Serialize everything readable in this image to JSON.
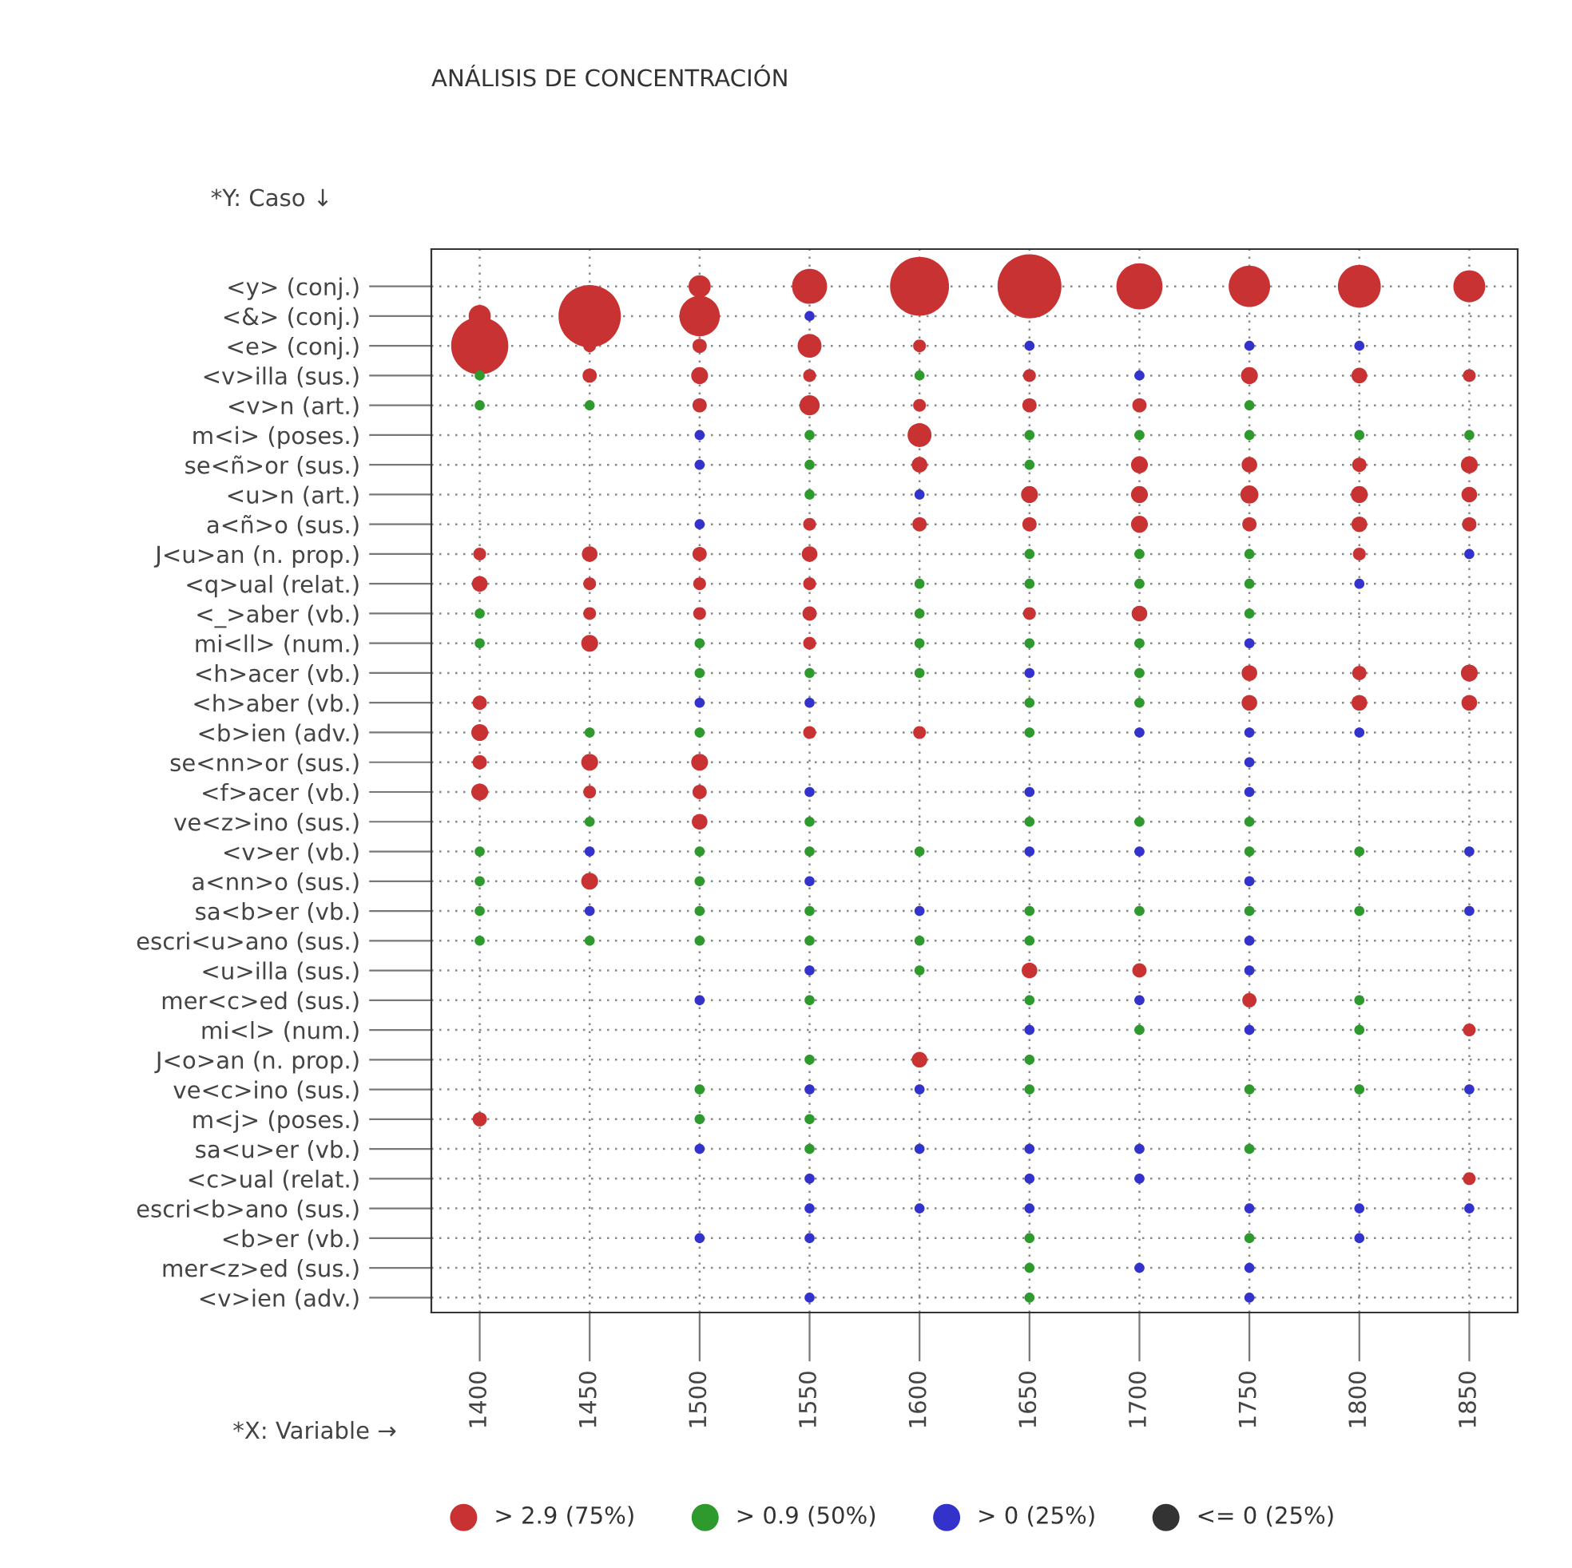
{
  "chart_data": {
    "type": "bubble",
    "orientation": "horizontal",
    "title": "ANÁLISIS DE CONCENTRACIÓN",
    "xlabel": "*X: Variable →",
    "annotations": [
      "*Y: Caso ↓"
    ],
    "categories": [
      "<y> (conj.)",
      "<&> (conj.)",
      "<e> (conj.)",
      "<v>illa (sus.)",
      "<v>n (art.)",
      "m<i> (poses.)",
      "se<ñ>or (sus.)",
      "<u>n (art.)",
      "a<ñ>o (sus.)",
      "J<u>an (n. prop.)",
      "<q>ual (relat.)",
      "<_>aber (vb.)",
      "mi<ll> (num.)",
      "<h>acer (vb.)",
      "<h>aber (vb.)",
      "<b>ien (adv.)",
      "se<nn>or (sus.)",
      "<f>acer (vb.)",
      "ve<z>ino (sus.)",
      "<v>er (vb.)",
      "a<nn>o (sus.)",
      "sa<b>er (vb.)",
      "escri<u>ano (sus.)",
      "<u>illa (sus.)",
      "mer<c>ed (sus.)",
      "mi<l> (num.)",
      "J<o>an (n. prop.)",
      "ve<c>ino (sus.)",
      "m<j> (poses.)",
      "sa<u>er (vb.)",
      "<c>ual (relat.)",
      "escri<b>ano (sus.)",
      "<b>er (vb.)",
      "mer<z>ed (sus.)",
      "<v>ien (adv.)"
    ],
    "xlim": [
      1378,
      1872
    ],
    "xticks": [
      1400,
      1450,
      1500,
      1550,
      1600,
      1650,
      1700,
      1750,
      1800,
      1850
    ],
    "grid": true,
    "legend": "bottom",
    "marker": "circle",
    "series": [
      {
        "values": [
          null,
          1400,
          1400,
          1400,
          1400,
          null,
          null,
          null,
          null,
          1400,
          1400,
          1400,
          1400,
          null,
          1400,
          1400,
          1400,
          1400,
          null,
          1400,
          1400,
          1400,
          1400,
          null,
          null,
          null,
          null,
          null,
          1400,
          null,
          null,
          null,
          null,
          null,
          null
        ],
        "sizes": [
          null,
          0.12,
          0.8,
          0.025,
          0.025,
          null,
          null,
          null,
          null,
          0.04,
          0.06,
          0.025,
          0.025,
          null,
          0.05,
          0.07,
          0.05,
          0.07,
          null,
          0.025,
          0.025,
          0.025,
          0.025,
          null,
          null,
          null,
          null,
          null,
          0.05,
          null,
          null,
          null,
          null,
          null,
          null
        ],
        "colors": [
          null,
          "#c83232",
          "#c83232",
          "#2e9a2e",
          "#2e9a2e",
          null,
          null,
          null,
          null,
          "#c83232",
          "#c83232",
          "#2e9a2e",
          "#2e9a2e",
          null,
          "#c83232",
          "#c83232",
          "#c83232",
          "#c83232",
          null,
          "#2e9a2e",
          "#2e9a2e",
          "#2e9a2e",
          "#2e9a2e",
          null,
          null,
          null,
          null,
          null,
          "#c83232",
          null,
          null,
          null,
          null,
          null,
          null
        ]
      },
      {
        "values": [
          null,
          1450,
          1450,
          1450,
          1450,
          null,
          null,
          null,
          null,
          1450,
          1450,
          1450,
          1450,
          null,
          null,
          1450,
          1450,
          1450,
          1450,
          1450,
          1450,
          1450,
          1450,
          null,
          null,
          null,
          null,
          null,
          null,
          null,
          null,
          null,
          null,
          null,
          null
        ],
        "sizes": [
          null,
          0.95,
          0.04,
          0.05,
          0.025,
          null,
          null,
          null,
          null,
          0.06,
          0.04,
          0.04,
          0.07,
          null,
          null,
          0.025,
          0.07,
          0.04,
          0.025,
          0.025,
          0.07,
          0.025,
          0.025,
          null,
          null,
          null,
          null,
          null,
          null,
          null,
          null,
          null,
          null,
          null,
          null
        ],
        "colors": [
          null,
          "#c83232",
          "#c83232",
          "#c83232",
          "#2e9a2e",
          null,
          null,
          null,
          null,
          "#c83232",
          "#c83232",
          "#c83232",
          "#c83232",
          null,
          null,
          "#2e9a2e",
          "#c83232",
          "#c83232",
          "#2e9a2e",
          "#3333cc",
          "#c83232",
          "#3333cc",
          "#2e9a2e",
          null,
          null,
          null,
          null,
          null,
          null,
          null,
          null,
          null,
          null,
          null,
          null
        ]
      },
      {
        "values": [
          1500,
          1500,
          1500,
          1500,
          1500,
          1500,
          1500,
          null,
          1500,
          1500,
          1500,
          1500,
          1500,
          1500,
          1500,
          1500,
          1500,
          1500,
          1500,
          1500,
          1500,
          1500,
          1500,
          null,
          1500,
          null,
          null,
          1500,
          1500,
          1500,
          null,
          null,
          1500,
          null,
          null
        ],
        "sizes": [
          0.12,
          0.4,
          0.05,
          0.07,
          0.05,
          0.025,
          0.025,
          null,
          0.025,
          0.05,
          0.04,
          0.04,
          0.025,
          0.025,
          0.025,
          0.025,
          0.07,
          0.05,
          0.06,
          0.025,
          0.025,
          0.025,
          0.025,
          null,
          0.025,
          null,
          null,
          0.025,
          0.025,
          0.025,
          null,
          null,
          0.025,
          null,
          null
        ],
        "colors": [
          "#c83232",
          "#c83232",
          "#c83232",
          "#c83232",
          "#c83232",
          "#3333cc",
          "#3333cc",
          null,
          "#3333cc",
          "#c83232",
          "#c83232",
          "#c83232",
          "#2e9a2e",
          "#2e9a2e",
          "#3333cc",
          "#2e9a2e",
          "#c83232",
          "#c83232",
          "#c83232",
          "#2e9a2e",
          "#2e9a2e",
          "#2e9a2e",
          "#2e9a2e",
          null,
          "#3333cc",
          null,
          null,
          "#2e9a2e",
          "#2e9a2e",
          "#3333cc",
          null,
          null,
          "#3333cc",
          null,
          null
        ]
      },
      {
        "values": [
          1550,
          1550,
          1550,
          1550,
          1550,
          1550,
          1550,
          1550,
          1550,
          1550,
          1550,
          1550,
          1550,
          1550,
          1550,
          1550,
          null,
          1550,
          1550,
          1550,
          1550,
          1550,
          1550,
          1550,
          1550,
          null,
          1550,
          1550,
          1550,
          1550,
          1550,
          1550,
          1550,
          null,
          1550
        ],
        "sizes": [
          0.3,
          0.025,
          0.14,
          0.04,
          0.1,
          0.025,
          0.025,
          0.025,
          0.04,
          0.06,
          0.04,
          0.05,
          0.04,
          0.025,
          0.025,
          0.04,
          null,
          0.025,
          0.025,
          0.025,
          0.025,
          0.025,
          0.025,
          0.025,
          0.025,
          null,
          0.025,
          0.025,
          0.025,
          0.025,
          0.025,
          0.025,
          0.025,
          null,
          0.025
        ],
        "colors": [
          "#c83232",
          "#3333cc",
          "#c83232",
          "#c83232",
          "#c83232",
          "#2e9a2e",
          "#2e9a2e",
          "#2e9a2e",
          "#c83232",
          "#c83232",
          "#c83232",
          "#c83232",
          "#c83232",
          "#2e9a2e",
          "#3333cc",
          "#c83232",
          null,
          "#3333cc",
          "#2e9a2e",
          "#2e9a2e",
          "#3333cc",
          "#2e9a2e",
          "#2e9a2e",
          "#3333cc",
          "#2e9a2e",
          null,
          "#2e9a2e",
          "#3333cc",
          "#2e9a2e",
          "#2e9a2e",
          "#3333cc",
          "#3333cc",
          "#3333cc",
          null,
          "#3333cc"
        ]
      },
      {
        "values": [
          1600,
          null,
          1600,
          1600,
          1600,
          1600,
          1600,
          1600,
          1600,
          null,
          1600,
          1600,
          1600,
          1600,
          null,
          1600,
          null,
          null,
          null,
          1600,
          null,
          1600,
          1600,
          1600,
          null,
          null,
          1600,
          1600,
          null,
          1600,
          null,
          1600,
          null,
          null,
          null
        ],
        "sizes": [
          0.85,
          null,
          0.04,
          0.025,
          0.04,
          0.14,
          0.06,
          0.025,
          0.05,
          null,
          0.025,
          0.025,
          0.025,
          0.025,
          null,
          0.04,
          null,
          null,
          null,
          0.025,
          null,
          0.025,
          0.025,
          0.025,
          null,
          null,
          0.06,
          0.025,
          null,
          0.025,
          null,
          0.025,
          null,
          null,
          null
        ],
        "colors": [
          "#c83232",
          null,
          "#c83232",
          "#2e9a2e",
          "#c83232",
          "#c83232",
          "#c83232",
          "#3333cc",
          "#c83232",
          null,
          "#2e9a2e",
          "#2e9a2e",
          "#2e9a2e",
          "#2e9a2e",
          null,
          "#c83232",
          null,
          null,
          null,
          "#2e9a2e",
          null,
          "#3333cc",
          "#2e9a2e",
          "#2e9a2e",
          null,
          null,
          "#c83232",
          "#3333cc",
          null,
          "#3333cc",
          null,
          "#3333cc",
          null,
          null,
          null
        ]
      },
      {
        "values": [
          1650,
          null,
          1650,
          1650,
          1650,
          1650,
          1650,
          1650,
          1650,
          1650,
          1650,
          1650,
          1650,
          1650,
          1650,
          1650,
          null,
          1650,
          1650,
          1650,
          null,
          1650,
          1650,
          1650,
          1650,
          1650,
          1650,
          1650,
          null,
          1650,
          1650,
          1650,
          1650,
          1650,
          1650
        ],
        "sizes": [
          1,
          null,
          0.025,
          0.04,
          0.05,
          0.025,
          0.025,
          0.07,
          0.05,
          0.025,
          0.025,
          0.04,
          0.025,
          0.025,
          0.025,
          0.025,
          null,
          0.025,
          0.025,
          0.025,
          null,
          0.025,
          0.025,
          0.06,
          0.025,
          0.025,
          0.025,
          0.025,
          null,
          0.025,
          0.025,
          0.025,
          0.025,
          0.025,
          0.025
        ],
        "colors": [
          "#c83232",
          null,
          "#3333cc",
          "#c83232",
          "#c83232",
          "#2e9a2e",
          "#2e9a2e",
          "#c83232",
          "#c83232",
          "#2e9a2e",
          "#2e9a2e",
          "#c83232",
          "#2e9a2e",
          "#3333cc",
          "#2e9a2e",
          "#2e9a2e",
          null,
          "#3333cc",
          "#2e9a2e",
          "#3333cc",
          null,
          "#2e9a2e",
          "#2e9a2e",
          "#c83232",
          "#2e9a2e",
          "#3333cc",
          "#2e9a2e",
          "#2e9a2e",
          null,
          "#3333cc",
          "#3333cc",
          "#3333cc",
          "#2e9a2e",
          "#2e9a2e",
          "#2e9a2e"
        ]
      },
      {
        "values": [
          1700,
          null,
          null,
          1700,
          1700,
          1700,
          1700,
          1700,
          1700,
          1700,
          1700,
          1700,
          1700,
          1700,
          1700,
          1700,
          null,
          null,
          1700,
          1700,
          null,
          1700,
          null,
          1700,
          1700,
          1700,
          null,
          null,
          null,
          1700,
          1700,
          null,
          null,
          1700,
          null
        ],
        "sizes": [
          0.52,
          null,
          null,
          0.025,
          0.05,
          0.025,
          0.07,
          0.07,
          0.07,
          0.025,
          0.025,
          0.06,
          0.025,
          0.025,
          0.025,
          0.025,
          null,
          null,
          0.025,
          0.025,
          null,
          0.025,
          null,
          0.05,
          0.025,
          0.025,
          null,
          null,
          null,
          0.025,
          0.025,
          null,
          null,
          0.025,
          null
        ],
        "colors": [
          "#c83232",
          null,
          null,
          "#3333cc",
          "#c83232",
          "#2e9a2e",
          "#c83232",
          "#c83232",
          "#c83232",
          "#2e9a2e",
          "#2e9a2e",
          "#c83232",
          "#2e9a2e",
          "#2e9a2e",
          "#2e9a2e",
          "#3333cc",
          null,
          null,
          "#2e9a2e",
          "#3333cc",
          null,
          "#2e9a2e",
          null,
          "#c83232",
          "#3333cc",
          "#2e9a2e",
          null,
          null,
          null,
          "#3333cc",
          "#3333cc",
          null,
          null,
          "#3333cc",
          null
        ]
      },
      {
        "values": [
          1750,
          null,
          1750,
          1750,
          1750,
          1750,
          1750,
          1750,
          1750,
          1750,
          1750,
          1750,
          1750,
          1750,
          1750,
          1750,
          1750,
          1750,
          1750,
          1750,
          1750,
          1750,
          1750,
          1750,
          1750,
          1750,
          null,
          1750,
          null,
          1750,
          null,
          1750,
          1750,
          1750,
          1750
        ],
        "sizes": [
          0.42,
          null,
          0.025,
          0.07,
          0.025,
          0.025,
          0.06,
          0.08,
          0.05,
          0.025,
          0.025,
          0.025,
          0.025,
          0.06,
          0.06,
          0.025,
          0.025,
          0.025,
          0.025,
          0.025,
          0.025,
          0.025,
          0.025,
          0.025,
          0.05,
          0.025,
          null,
          0.025,
          null,
          0.025,
          null,
          0.025,
          0.025,
          0.025,
          0.025
        ],
        "colors": [
          "#c83232",
          null,
          "#3333cc",
          "#c83232",
          "#2e9a2e",
          "#2e9a2e",
          "#c83232",
          "#c83232",
          "#c83232",
          "#2e9a2e",
          "#2e9a2e",
          "#2e9a2e",
          "#3333cc",
          "#c83232",
          "#c83232",
          "#3333cc",
          "#3333cc",
          "#3333cc",
          "#2e9a2e",
          "#2e9a2e",
          "#3333cc",
          "#2e9a2e",
          "#3333cc",
          "#3333cc",
          "#c83232",
          "#3333cc",
          null,
          "#2e9a2e",
          null,
          "#2e9a2e",
          null,
          "#3333cc",
          "#2e9a2e",
          "#3333cc",
          "#3333cc"
        ]
      },
      {
        "values": [
          1800,
          null,
          1800,
          1800,
          null,
          1800,
          1800,
          1800,
          1800,
          1800,
          1800,
          null,
          null,
          1800,
          1800,
          1800,
          null,
          null,
          null,
          1800,
          null,
          1800,
          null,
          null,
          1800,
          1800,
          null,
          1800,
          null,
          null,
          null,
          1800,
          1800,
          null,
          null
        ],
        "sizes": [
          0.45,
          null,
          0.025,
          0.06,
          null,
          0.025,
          0.05,
          0.07,
          0.06,
          0.04,
          0.025,
          null,
          null,
          0.05,
          0.06,
          0.025,
          null,
          null,
          null,
          0.025,
          null,
          0.025,
          null,
          null,
          0.025,
          0.025,
          null,
          0.025,
          null,
          null,
          null,
          0.025,
          0.025,
          null,
          null
        ],
        "colors": [
          "#c83232",
          null,
          "#3333cc",
          "#c83232",
          null,
          "#2e9a2e",
          "#c83232",
          "#c83232",
          "#c83232",
          "#c83232",
          "#3333cc",
          null,
          null,
          "#c83232",
          "#c83232",
          "#3333cc",
          null,
          null,
          null,
          "#2e9a2e",
          null,
          "#2e9a2e",
          null,
          null,
          "#2e9a2e",
          "#2e9a2e",
          null,
          "#2e9a2e",
          null,
          null,
          null,
          "#3333cc",
          "#3333cc",
          null,
          null
        ]
      },
      {
        "values": [
          1850,
          null,
          null,
          1850,
          null,
          1850,
          1850,
          1850,
          1850,
          1850,
          null,
          null,
          null,
          1850,
          1850,
          null,
          null,
          null,
          null,
          1850,
          null,
          1850,
          null,
          null,
          null,
          1850,
          null,
          1850,
          null,
          null,
          1850,
          1850,
          null,
          null,
          null
        ],
        "sizes": [
          0.25,
          null,
          null,
          0.04,
          null,
          0.025,
          0.07,
          0.06,
          0.05,
          0.025,
          null,
          null,
          null,
          0.07,
          0.06,
          null,
          null,
          null,
          null,
          0.025,
          null,
          0.025,
          null,
          null,
          null,
          0.04,
          null,
          0.025,
          null,
          null,
          0.04,
          0.025,
          null,
          null,
          null
        ],
        "colors": [
          "#c83232",
          null,
          null,
          "#c83232",
          null,
          "#2e9a2e",
          "#c83232",
          "#c83232",
          "#c83232",
          "#3333cc",
          null,
          null,
          null,
          "#c83232",
          "#c83232",
          null,
          null,
          null,
          null,
          "#3333cc",
          null,
          "#3333cc",
          null,
          null,
          null,
          "#c83232",
          null,
          "#3333cc",
          null,
          null,
          "#c83232",
          "#3333cc",
          null,
          null,
          null
        ]
      },
      {
        "name": "> 2.9 (75%)",
        "color": "#c83232",
        "values": [
          null,
          null,
          null,
          null,
          null,
          null,
          null,
          null,
          null,
          null,
          null,
          null,
          null,
          null,
          null,
          null,
          null,
          null,
          null,
          null,
          null,
          null,
          null,
          null,
          null,
          null,
          null,
          null,
          null,
          null,
          null,
          null,
          null,
          null,
          null
        ]
      },
      {
        "name": "> 0.9 (50%)",
        "color": "#2e9a2e",
        "values": [
          null,
          null,
          null,
          null,
          null,
          null,
          null,
          null,
          null,
          null,
          null,
          null,
          null,
          null,
          null,
          null,
          null,
          null,
          null,
          null,
          null,
          null,
          null,
          null,
          null,
          null,
          null,
          null,
          null,
          null,
          null,
          null,
          null,
          null,
          null
        ]
      },
      {
        "name": "> 0 (25%)",
        "color": "#3333cc",
        "values": [
          null,
          null,
          null,
          null,
          null,
          null,
          null,
          null,
          null,
          null,
          null,
          null,
          null,
          null,
          null,
          null,
          null,
          null,
          null,
          null,
          null,
          null,
          null,
          null,
          null,
          null,
          null,
          null,
          null,
          null,
          null,
          null,
          null,
          null,
          null
        ]
      },
      {
        "name": "<= 0 (25%)",
        "color": "#333333",
        "values": [
          null,
          null,
          null,
          null,
          null,
          null,
          null,
          null,
          null,
          null,
          null,
          null,
          null,
          null,
          null,
          null,
          null,
          null,
          null,
          null,
          null,
          null,
          null,
          null,
          null,
          null,
          null,
          null,
          null,
          null,
          null,
          null,
          null,
          null,
          null
        ]
      }
    ]
  }
}
